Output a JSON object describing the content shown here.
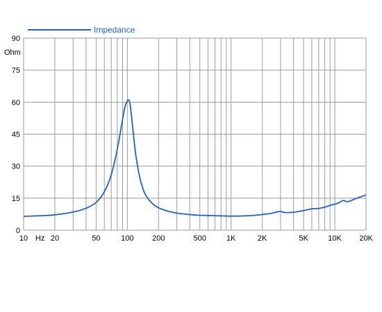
{
  "chart_data": {
    "type": "line",
    "title": "",
    "xlabel": "",
    "ylabel": "",
    "y_unit_label": "Ohm",
    "x_unit_label": "Hz",
    "x_scale": "log",
    "xlim": [
      10,
      20000
    ],
    "ylim": [
      0,
      90
    ],
    "grid": true,
    "legend_position": "top-left",
    "y_ticks": [
      {
        "value": 0,
        "label": "0"
      },
      {
        "value": 15,
        "label": "15"
      },
      {
        "value": 30,
        "label": "30"
      },
      {
        "value": 45,
        "label": "45"
      },
      {
        "value": 60,
        "label": "60"
      },
      {
        "value": 75,
        "label": "75"
      },
      {
        "value": 90,
        "label": "90"
      }
    ],
    "x_ticks": [
      {
        "value": 10,
        "label": "10"
      },
      {
        "value": 20,
        "label": "20"
      },
      {
        "value": 50,
        "label": "50"
      },
      {
        "value": 100,
        "label": "100"
      },
      {
        "value": 200,
        "label": "200"
      },
      {
        "value": 500,
        "label": "500"
      },
      {
        "value": 1000,
        "label": "1K"
      },
      {
        "value": 2000,
        "label": "2K"
      },
      {
        "value": 5000,
        "label": "5K"
      },
      {
        "value": 10000,
        "label": "10K"
      },
      {
        "value": 20000,
        "label": "20K"
      }
    ],
    "series": [
      {
        "name": "Impedance",
        "color": "#1f5fd6",
        "x": [
          10,
          15,
          20,
          30,
          40,
          50,
          60,
          70,
          80,
          90,
          95,
          100,
          103,
          106,
          110,
          115,
          120,
          130,
          140,
          150,
          170,
          200,
          250,
          300,
          400,
          500,
          700,
          1000,
          1500,
          2000,
          2500,
          2800,
          3000,
          3300,
          4000,
          5000,
          6000,
          7000,
          8000,
          9000,
          10000,
          11000,
          12000,
          12500,
          13000,
          14000,
          15000,
          17000,
          20000
        ],
        "y": [
          6.5,
          6.8,
          7.2,
          8.5,
          10.3,
          13,
          18,
          26,
          38,
          52,
          58,
          60.5,
          61,
          59.5,
          53,
          44,
          36,
          26,
          20,
          16.5,
          13,
          10.5,
          8.8,
          8,
          7.3,
          7,
          6.8,
          6.6,
          6.8,
          7.3,
          8,
          8.6,
          8.8,
          8.3,
          8.4,
          9.2,
          10,
          10.2,
          10.8,
          11.6,
          12.2,
          12.9,
          13.9,
          13.7,
          13.4,
          13.6,
          14.3,
          15.3,
          16.5
        ]
      }
    ]
  },
  "colors": {
    "curve": "#1f5fd6",
    "grid": "#9a9a9a",
    "text": "#000000",
    "background": "#ffffff"
  }
}
